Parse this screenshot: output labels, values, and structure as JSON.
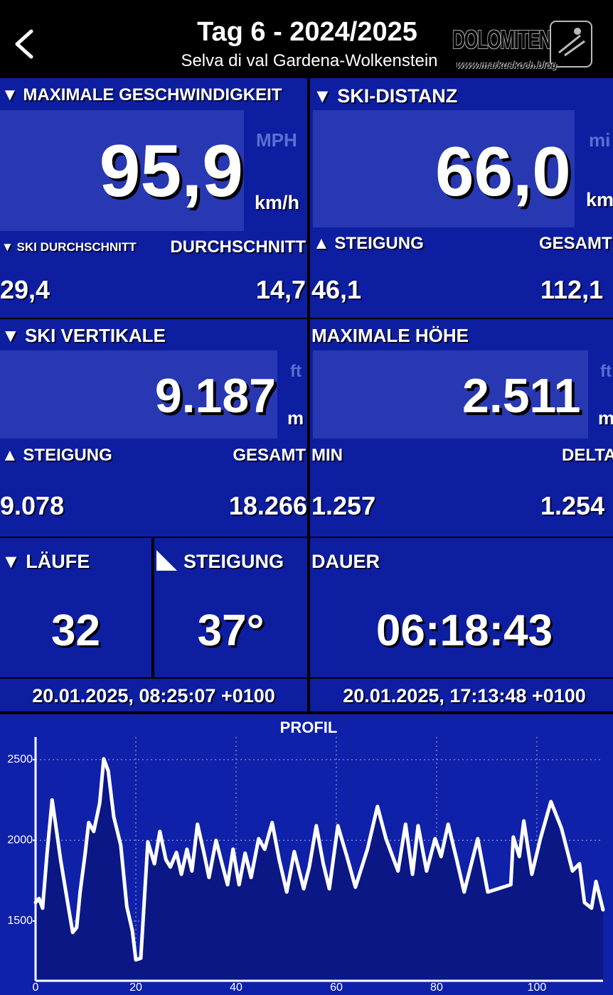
{
  "header": {
    "title": "Tag 6 - 2024/2025",
    "subtitle": "Selva di val Gardena-Wolkenstein",
    "watermark": "DOLOMITEN",
    "watermark_url": "www.markuskoch.blog"
  },
  "tiles": [
    {
      "label": "▼ MAXIMALE GESCHWINDIGKEIT",
      "value": "95,9",
      "unit_alt": "MPH",
      "unit": "km/h",
      "sub_labels": [
        "▼ SKI DURCHSCHNITT",
        "DURCHSCHNITT"
      ],
      "sub_values": [
        "29,4",
        "14,7"
      ]
    },
    {
      "label": "▼ SKI-DISTANZ",
      "value": "66,0",
      "unit_alt": "mi",
      "unit": "km",
      "sub_labels": [
        "▲ STEIGUNG",
        "GESAMT"
      ],
      "sub_values": [
        "46,1",
        "112,1"
      ]
    },
    {
      "label": "▼ SKI VERTIKALE",
      "value": "9.187",
      "unit_alt": "ft",
      "unit": "m",
      "sub_labels": [
        "▲ STEIGUNG",
        "GESAMT"
      ],
      "sub_values": [
        "9.078",
        "18.266"
      ]
    },
    {
      "label": "MAXIMALE HÖHE",
      "value": "2.511",
      "unit_alt": "ft",
      "unit": "m",
      "sub_labels": [
        "MIN",
        "DELTA"
      ],
      "sub_values": [
        "1.257",
        "1.254"
      ]
    },
    {
      "label": "▼ LÄUFE",
      "value": "32"
    },
    {
      "label": "STEIGUNG",
      "value": "37°"
    },
    {
      "label": "DAUER",
      "value": "06:18:43"
    }
  ],
  "dates": [
    "20.01.2025, 08:25:07 +0100",
    "20.01.2025, 17:13:48 +0100"
  ],
  "chart_data": {
    "type": "line",
    "title": "PROFIL",
    "color": "#ffffff",
    "area_color": "#0a1785",
    "x": [
      0,
      0.7,
      1.4,
      2.3,
      3.3,
      4.0,
      5.0,
      6.4,
      7.4,
      8.2,
      8.9,
      9.9,
      10.6,
      11.6,
      12.8,
      13.6,
      14.5,
      15.6,
      17.0,
      18.2,
      19.3,
      20.0,
      21.0,
      22.4,
      23.7,
      24.8,
      26.0,
      26.9,
      28.1,
      29.1,
      30.2,
      31.2,
      32.3,
      33.6,
      34.6,
      36.0,
      37.2,
      38.3,
      39.4,
      40.6,
      41.8,
      43.0,
      44.5,
      45.7,
      47.2,
      48.6,
      50.1,
      51.6,
      53.5,
      54.6,
      56.0,
      57.4,
      58.6,
      60.3,
      62.1,
      63.8,
      66.2,
      68.2,
      69.9,
      72.3,
      73.8,
      75.2,
      76.3,
      78.0,
      79.7,
      80.9,
      82.3,
      84.0,
      85.5,
      88.2,
      90.2,
      94.8,
      95.3,
      96.5,
      97.4,
      99.0,
      100.7,
      102.8,
      104.9,
      107.1,
      108.5,
      109.5,
      110.9,
      111.8,
      113.2
    ],
    "values": [
      1615,
      1640,
      1580,
      1920,
      2250,
      2100,
      1880,
      1615,
      1430,
      1460,
      1680,
      1920,
      2110,
      2055,
      2230,
      2505,
      2430,
      2145,
      1970,
      1590,
      1440,
      1260,
      1270,
      1990,
      1855,
      2055,
      1880,
      1835,
      1925,
      1790,
      1945,
      1810,
      2100,
      1920,
      1770,
      2000,
      1855,
      1725,
      1945,
      1725,
      1920,
      1770,
      2010,
      1945,
      2110,
      1880,
      1680,
      1930,
      1700,
      1835,
      2090,
      1855,
      1700,
      2090,
      1900,
      1710,
      1945,
      2210,
      2010,
      1810,
      2100,
      1790,
      2090,
      1810,
      2010,
      1900,
      2100,
      1880,
      1680,
      2010,
      1680,
      1725,
      2020,
      1900,
      2120,
      1790,
      2010,
      2240,
      2075,
      1810,
      1855,
      1615,
      1580,
      1745,
      1570
    ],
    "xlim": [
      0,
      113.2
    ],
    "ylim": [
      1130,
      2640
    ],
    "xticks": [
      0,
      20,
      40,
      60,
      80,
      100
    ],
    "yticks": [
      1500,
      2000,
      2500
    ],
    "grid": true
  }
}
